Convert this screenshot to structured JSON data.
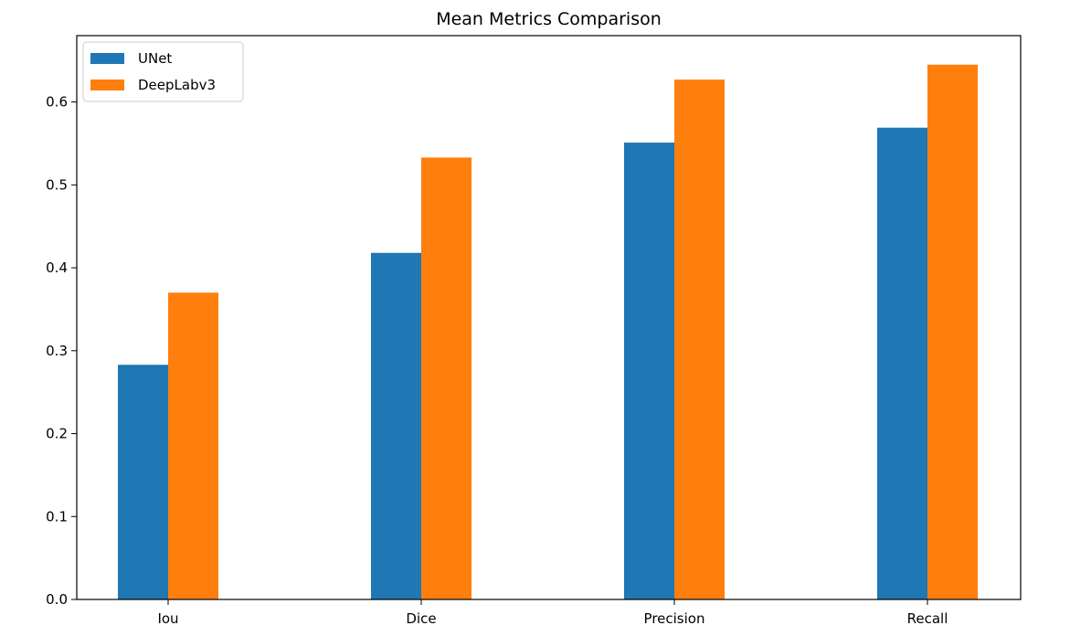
{
  "chart_data": {
    "type": "bar",
    "title": "Mean Metrics Comparison",
    "xlabel": "",
    "ylabel": "",
    "categories": [
      "Iou",
      "Dice",
      "Precision",
      "Recall"
    ],
    "series": [
      {
        "name": "UNet",
        "values": [
          0.283,
          0.418,
          0.551,
          0.569
        ],
        "color": "#1f77b4"
      },
      {
        "name": "DeepLabv3",
        "values": [
          0.37,
          0.533,
          0.627,
          0.645
        ],
        "color": "#ff7f0e"
      }
    ],
    "ylim": [
      0,
      0.68
    ],
    "yticks": [
      "0.0",
      "0.1",
      "0.2",
      "0.3",
      "0.4",
      "0.5",
      "0.6"
    ],
    "legend": "top-left",
    "grid": false
  }
}
